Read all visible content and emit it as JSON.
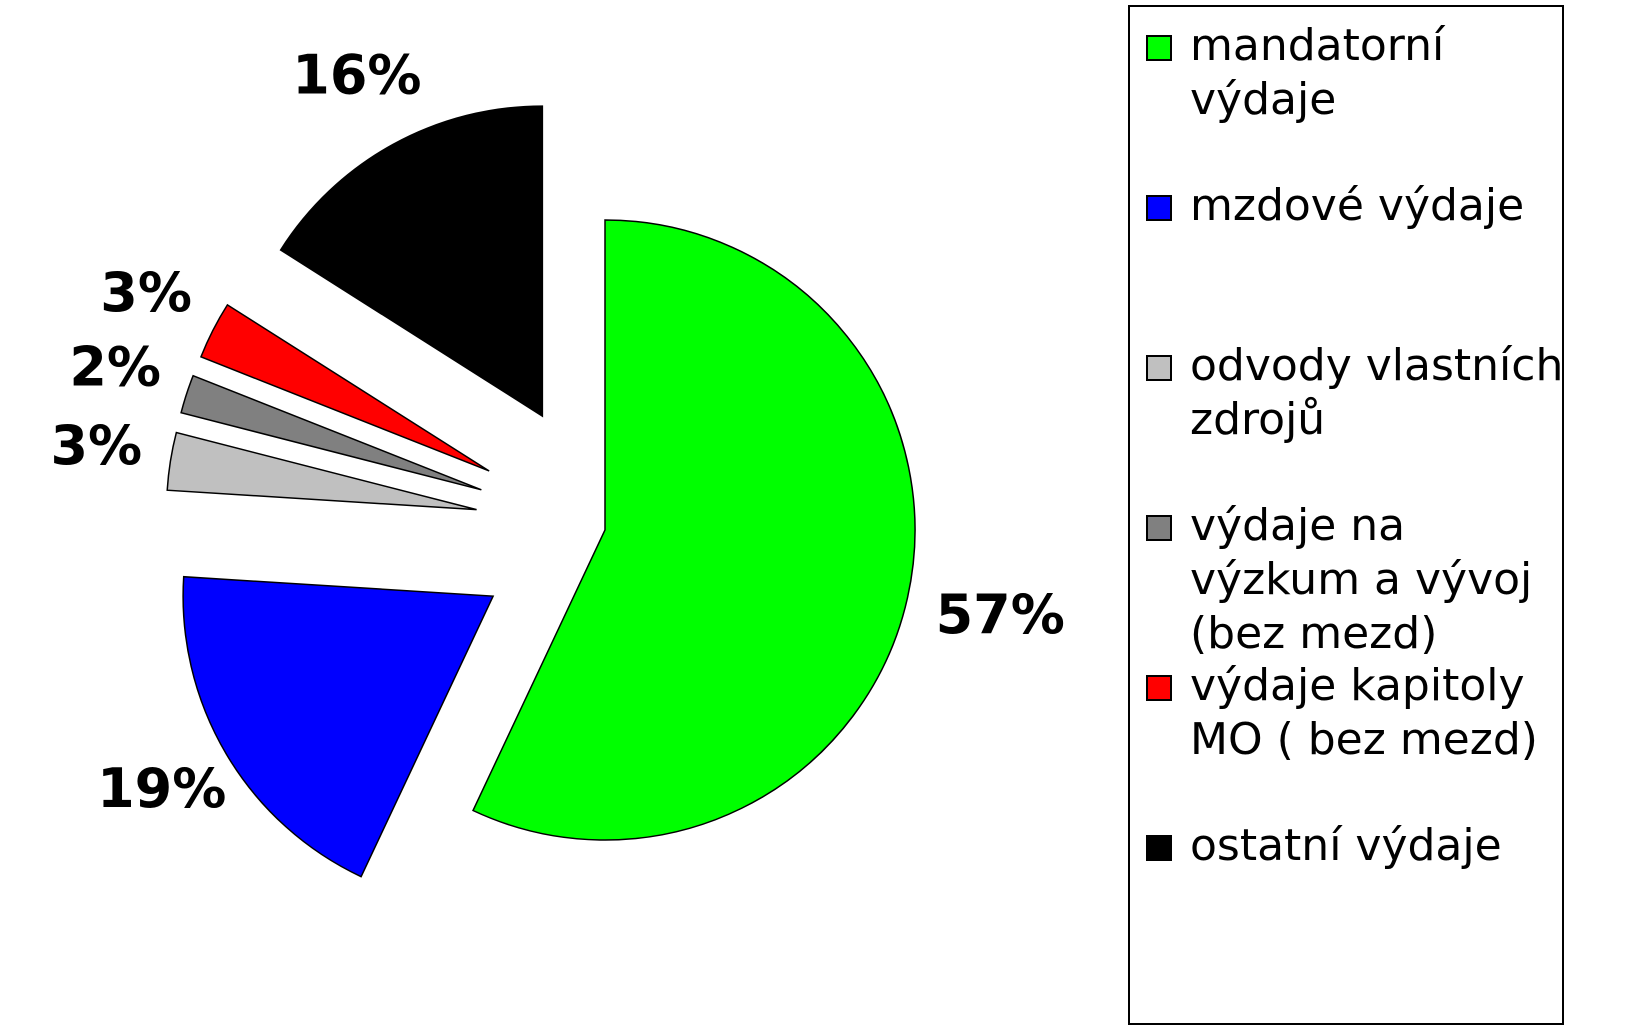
{
  "chart_data": {
    "type": "pie",
    "series": [
      {
        "name": "mandatorní výdaje",
        "color": "#00ff00",
        "values": [
          57
        ],
        "value_labels": [
          "57%"
        ]
      },
      {
        "name": "mzdové výdaje",
        "color": "#0000ff",
        "values": [
          19
        ],
        "value_labels": [
          "19%"
        ]
      },
      {
        "name": "odvody vlastních zdrojů",
        "color": "#c0c0c0",
        "values": [
          3
        ],
        "value_labels": [
          "3%"
        ]
      },
      {
        "name": "výdaje na výzkum a vývoj (bez mezd)",
        "color": "#808080",
        "values": [
          2
        ],
        "value_labels": [
          "2%"
        ]
      },
      {
        "name": "výdaje kapitoly MO ( bez mezd)",
        "color": "#ff0000",
        "values": [
          3
        ],
        "value_labels": [
          "3%"
        ]
      },
      {
        "name": "ostatní výdaje",
        "color": "#000000",
        "values": [
          16
        ],
        "value_labels": [
          "16%"
        ]
      }
    ],
    "legend": "right"
  }
}
